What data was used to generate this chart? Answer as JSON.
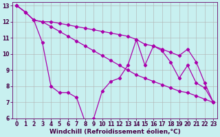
{
  "background_color": "#c8f0f0",
  "line_color": "#aa00aa",
  "grid_color": "#b0b0b0",
  "xlabel": "Windchill (Refroidissement éolien,°C)",
  "xlabel_fontsize": 6.5,
  "tick_fontsize": 5.5,
  "xlim": [
    -0.5,
    23.5
  ],
  "ylim": [
    6,
    13.2
  ],
  "yticks": [
    6,
    7,
    8,
    9,
    10,
    11,
    12,
    13
  ],
  "xticks": [
    0,
    1,
    2,
    3,
    4,
    5,
    6,
    7,
    8,
    9,
    10,
    11,
    12,
    13,
    14,
    15,
    16,
    17,
    18,
    19,
    20,
    21,
    22,
    23
  ],
  "line1_x": [
    0,
    1,
    2,
    3,
    4,
    5,
    6,
    7,
    8,
    9,
    10,
    11,
    12,
    13,
    14,
    15,
    16,
    17,
    18,
    19,
    20,
    21,
    22,
    23
  ],
  "line1_y": [
    13.0,
    12.6,
    12.1,
    10.7,
    8.0,
    7.6,
    7.6,
    7.3,
    5.8,
    6.0,
    7.7,
    8.3,
    8.5,
    9.3,
    10.9,
    9.3,
    10.5,
    10.2,
    9.5,
    8.5,
    9.3,
    8.2,
    7.9,
    7.0
  ],
  "line2_x": [
    0,
    1,
    2,
    3,
    4,
    5,
    6,
    7,
    8,
    9,
    10,
    11,
    12,
    13,
    14,
    15,
    16,
    17,
    18,
    19,
    20,
    21,
    22,
    23
  ],
  "line2_y": [
    13.0,
    12.6,
    12.1,
    12.0,
    11.7,
    11.4,
    11.1,
    10.8,
    10.5,
    10.2,
    9.9,
    9.6,
    9.3,
    9.0,
    8.7,
    8.5,
    8.3,
    8.1,
    7.9,
    7.7,
    7.6,
    7.4,
    7.2,
    7.0
  ],
  "line3_x": [
    0,
    1,
    2,
    3,
    4,
    5,
    6,
    7,
    8,
    9,
    10,
    11,
    12,
    13,
    14,
    15,
    16,
    17,
    18,
    19,
    20,
    21,
    22,
    23
  ],
  "line3_y": [
    13.0,
    12.6,
    12.1,
    12.0,
    12.0,
    11.9,
    11.8,
    11.7,
    11.6,
    11.5,
    11.4,
    11.3,
    11.2,
    11.1,
    10.9,
    10.6,
    10.5,
    10.3,
    10.1,
    9.9,
    10.3,
    9.5,
    8.2,
    7.0
  ]
}
